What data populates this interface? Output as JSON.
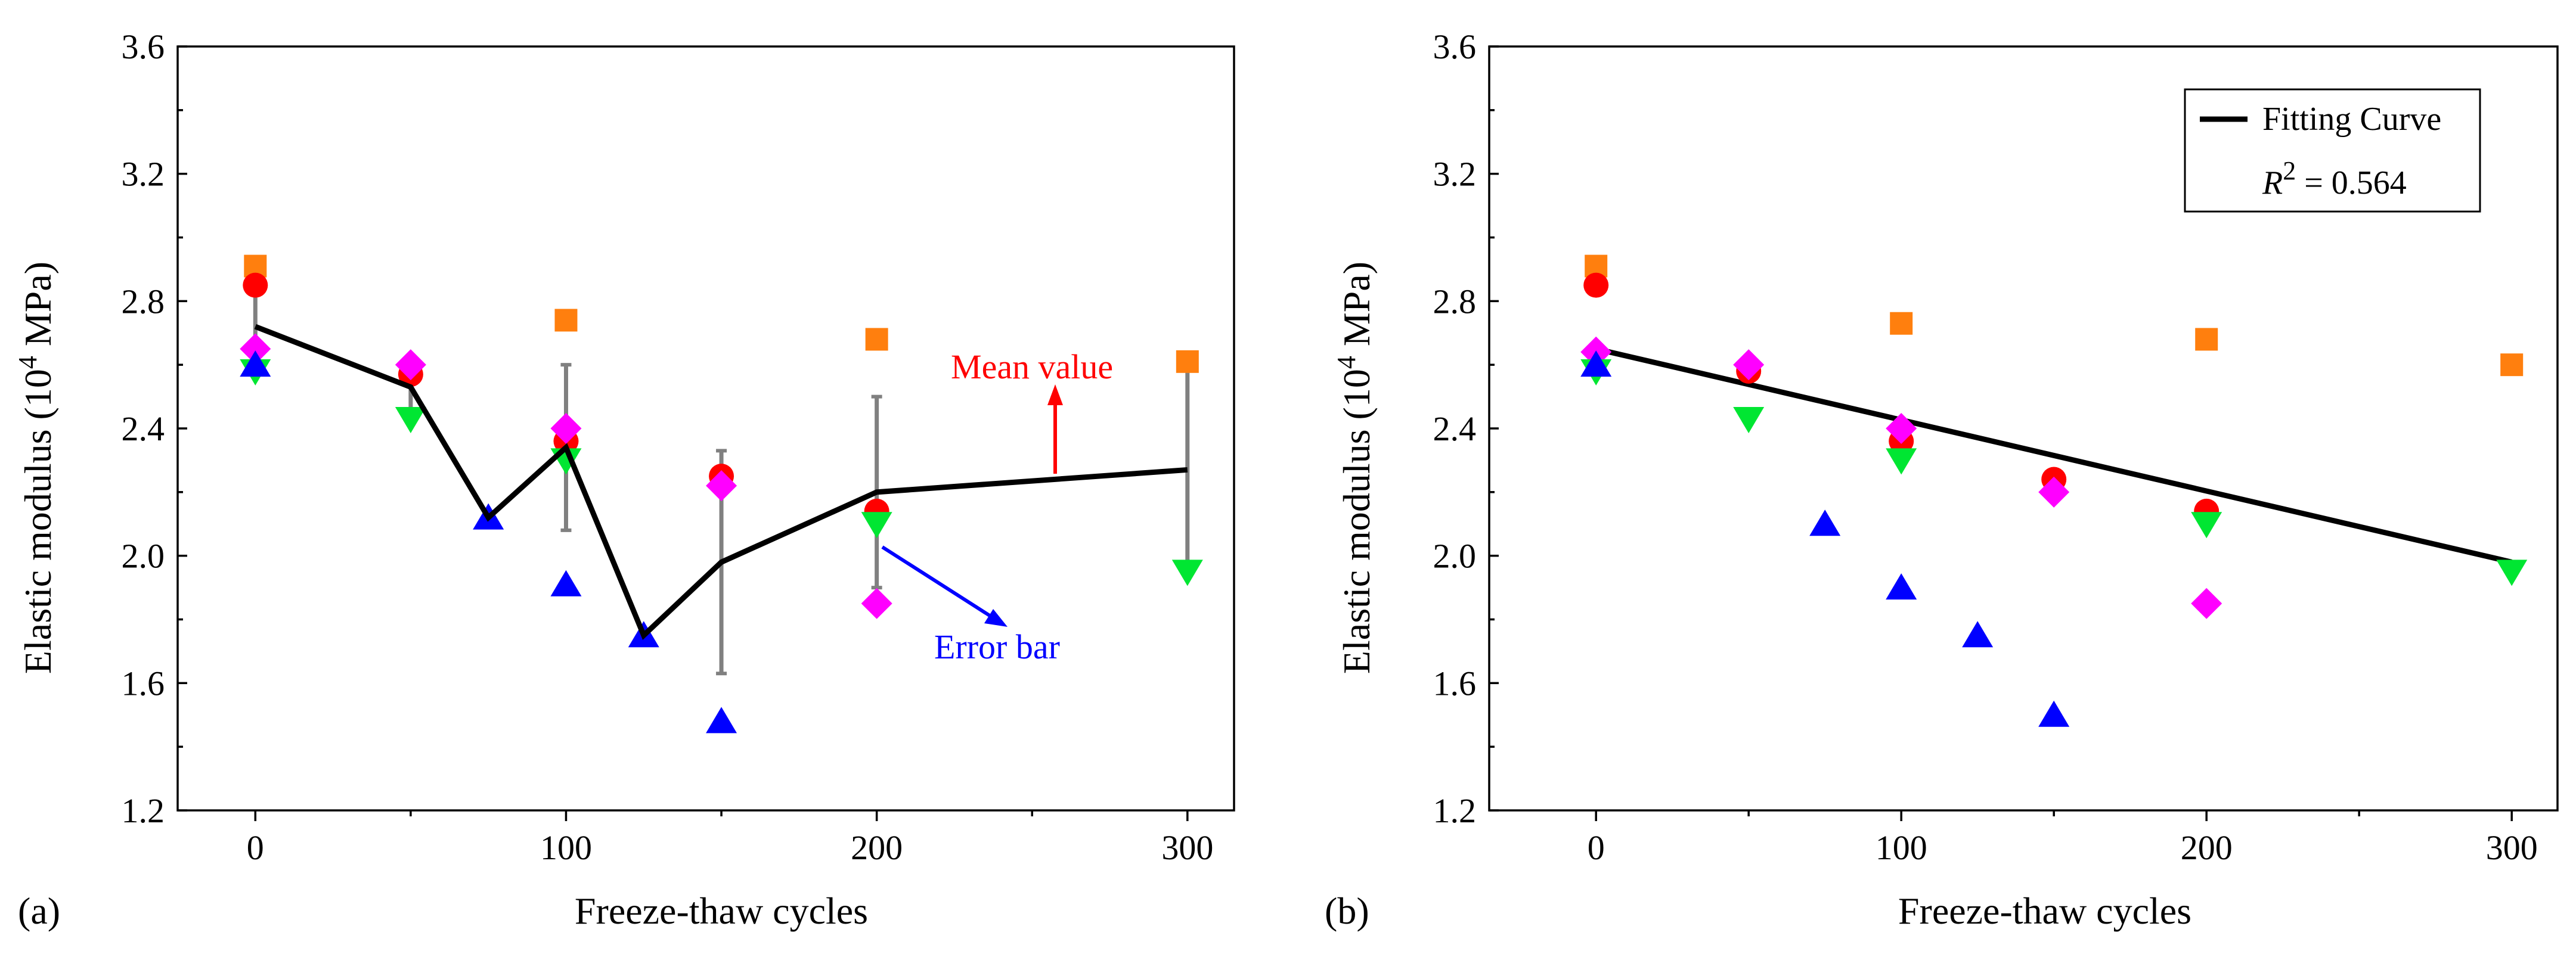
{
  "colors": {
    "orange": "#ff7f0e",
    "red": "#ff0000",
    "magenta": "#ff00ff",
    "green": "#00e632",
    "blue": "#0000ff",
    "gray": "#808080",
    "black": "#000000"
  },
  "chart_data": [
    {
      "type": "scatter",
      "panel": "(a)",
      "xlabel": "Freeze-thaw cycles",
      "ylabel": "Elastic modulus (10",
      "ylabel_sup": "4",
      "ylabel_tail": " MPa)",
      "xlim": [
        -25,
        315
      ],
      "ylim": [
        1.2,
        3.6
      ],
      "xticks": [
        "0",
        "100",
        "200",
        "300"
      ],
      "xtick_values": [
        0,
        100,
        200,
        300
      ],
      "yticks": [
        "1.2",
        "1.6",
        "2.0",
        "2.4",
        "2.8",
        "3.2",
        "3.6"
      ],
      "ytick_values": [
        1.2,
        1.6,
        2.0,
        2.4,
        2.8,
        3.2,
        3.6
      ],
      "series": [
        {
          "name": "orange squares",
          "marker": "square",
          "color": "#ff7f0e",
          "x": [
            0,
            100,
            200,
            300
          ],
          "y": [
            2.91,
            2.74,
            2.68,
            2.61
          ]
        },
        {
          "name": "red circles",
          "marker": "circle",
          "color": "#ff0000",
          "x": [
            0,
            50,
            100,
            150,
            200
          ],
          "y": [
            2.85,
            2.57,
            2.36,
            2.25,
            2.14
          ]
        },
        {
          "name": "magenta diamonds",
          "marker": "diamond",
          "color": "#ff00ff",
          "x": [
            0,
            50,
            100,
            150,
            200
          ],
          "y": [
            2.65,
            2.6,
            2.4,
            2.22,
            1.85
          ]
        },
        {
          "name": "green triangles down",
          "marker": "triangle-down",
          "color": "#00e632",
          "x": [
            0,
            50,
            100,
            200,
            300
          ],
          "y": [
            2.58,
            2.43,
            2.3,
            2.1,
            1.95
          ]
        },
        {
          "name": "blue triangles up",
          "marker": "triangle-up",
          "color": "#0000ff",
          "x": [
            0,
            75,
            100,
            125,
            150
          ],
          "y": [
            2.6,
            2.12,
            1.91,
            1.75,
            1.48
          ]
        }
      ],
      "mean_line": {
        "x": [
          0,
          50,
          75,
          100,
          125,
          150,
          200,
          300
        ],
        "y": [
          2.72,
          2.53,
          2.12,
          2.34,
          1.75,
          1.98,
          2.2,
          2.27
        ]
      },
      "error_bars": [
        {
          "x": 0,
          "low": 2.6,
          "high": 2.86
        },
        {
          "x": 50,
          "low": 2.43,
          "high": 2.6
        },
        {
          "x": 100,
          "low": 2.08,
          "high": 2.6
        },
        {
          "x": 150,
          "low": 1.63,
          "high": 2.33
        },
        {
          "x": 200,
          "low": 1.9,
          "high": 2.5
        },
        {
          "x": 300,
          "low": 1.95,
          "high": 2.61
        }
      ],
      "annotations": {
        "mean_value": "Mean value",
        "error_bar": "Error bar"
      }
    },
    {
      "type": "scatter",
      "panel": "(b)",
      "xlabel": "Freeze-thaw cycles",
      "ylabel": "Elastic modulus (10",
      "ylabel_sup": "4",
      "ylabel_tail": " MPa)",
      "xlim": [
        -35,
        315
      ],
      "ylim": [
        1.2,
        3.6
      ],
      "xticks": [
        "0",
        "100",
        "200",
        "300"
      ],
      "xtick_values": [
        0,
        100,
        200,
        300
      ],
      "yticks": [
        "1.2",
        "1.6",
        "2.0",
        "2.4",
        "2.8",
        "3.2",
        "3.6"
      ],
      "ytick_values": [
        1.2,
        1.6,
        2.0,
        2.4,
        2.8,
        3.2,
        3.6
      ],
      "series": [
        {
          "name": "orange squares",
          "marker": "square",
          "color": "#ff7f0e",
          "x": [
            0,
            100,
            200,
            300
          ],
          "y": [
            2.91,
            2.73,
            2.68,
            2.6
          ]
        },
        {
          "name": "red circles",
          "marker": "circle",
          "color": "#ff0000",
          "x": [
            0,
            50,
            100,
            150,
            200
          ],
          "y": [
            2.85,
            2.58,
            2.36,
            2.24,
            2.14
          ]
        },
        {
          "name": "magenta diamonds",
          "marker": "diamond",
          "color": "#ff00ff",
          "x": [
            0,
            50,
            100,
            150,
            200
          ],
          "y": [
            2.64,
            2.6,
            2.4,
            2.2,
            1.85
          ]
        },
        {
          "name": "green triangles down",
          "marker": "triangle-down",
          "color": "#00e632",
          "x": [
            0,
            50,
            100,
            200,
            300
          ],
          "y": [
            2.58,
            2.43,
            2.3,
            2.1,
            1.95
          ]
        },
        {
          "name": "blue triangles up",
          "marker": "triangle-up",
          "color": "#0000ff",
          "x": [
            0,
            75,
            100,
            125,
            150
          ],
          "y": [
            2.6,
            2.1,
            1.9,
            1.75,
            1.5
          ]
        }
      ],
      "fit_line": {
        "x": [
          0,
          300
        ],
        "y": [
          2.65,
          1.98
        ]
      },
      "legend": {
        "label": "Fitting Curve",
        "r2_symbol": "R",
        "r2_sup": "2",
        "r2_value": " = 0.564",
        "position": "top-right"
      }
    }
  ]
}
